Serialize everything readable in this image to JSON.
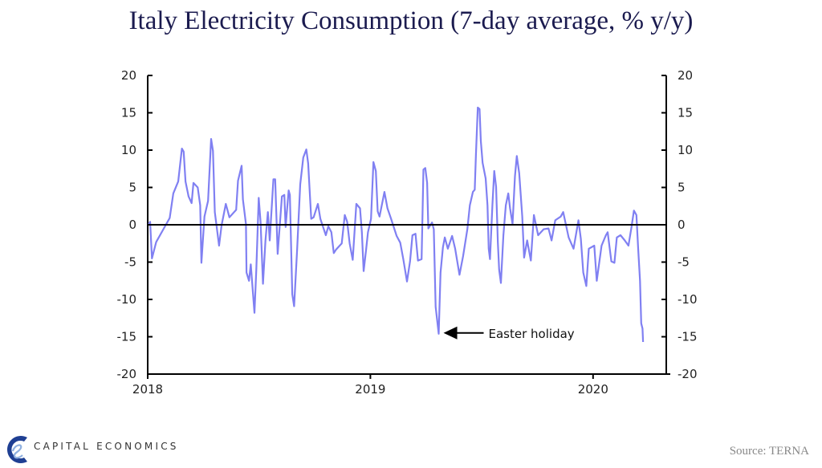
{
  "chart_data": {
    "type": "line",
    "title": "Italy Electricity Consumption (7-day average, % y/y)",
    "ylim": [
      -20,
      20
    ],
    "yticks": [
      20,
      15,
      10,
      5,
      0,
      -5,
      -10,
      -15,
      -20
    ],
    "xlim": [
      "2018-01-01",
      "2020-04-30"
    ],
    "xticks": [
      {
        "date": "2018-01-01",
        "label": "2018"
      },
      {
        "date": "2019-01-01",
        "label": "2019"
      },
      {
        "date": "2020-01-01",
        "label": "2020"
      }
    ],
    "dual_y_axis": true,
    "grid": false,
    "zero_line": true,
    "line_color": "#8080f2",
    "annotation": {
      "text": "Easter holiday",
      "date": "2019-04-23",
      "value": -14.6
    },
    "series": [
      {
        "points": [
          [
            "2018-01-02",
            0
          ],
          [
            "2018-01-05",
            0.4
          ],
          [
            "2018-01-08",
            -4.5
          ],
          [
            "2018-01-15",
            -2.3
          ],
          [
            "2018-01-26",
            -0.7
          ],
          [
            "2018-02-06",
            0.9
          ],
          [
            "2018-02-12",
            4.2
          ],
          [
            "2018-02-20",
            5.8
          ],
          [
            "2018-02-26",
            10.2
          ],
          [
            "2018-03-01",
            9.8
          ],
          [
            "2018-03-04",
            5.8
          ],
          [
            "2018-03-09",
            3.8
          ],
          [
            "2018-03-14",
            2.9
          ],
          [
            "2018-03-17",
            5.6
          ],
          [
            "2018-03-24",
            5.0
          ],
          [
            "2018-03-28",
            2.6
          ],
          [
            "2018-03-30",
            -5.1
          ],
          [
            "2018-04-04",
            1.1
          ],
          [
            "2018-04-10",
            3.2
          ],
          [
            "2018-04-15",
            11.5
          ],
          [
            "2018-04-18",
            9.9
          ],
          [
            "2018-04-21",
            1.7
          ],
          [
            "2018-04-28",
            -2.8
          ],
          [
            "2018-05-02",
            -0.1
          ],
          [
            "2018-05-09",
            2.8
          ],
          [
            "2018-05-15",
            1.0
          ],
          [
            "2018-05-26",
            2.0
          ],
          [
            "2018-05-29",
            5.9
          ],
          [
            "2018-06-04",
            7.9
          ],
          [
            "2018-06-06",
            3.4
          ],
          [
            "2018-06-11",
            0.1
          ],
          [
            "2018-06-12",
            -6.4
          ],
          [
            "2018-06-16",
            -7.5
          ],
          [
            "2018-06-19",
            -5.3
          ],
          [
            "2018-06-25",
            -11.8
          ],
          [
            "2018-06-28",
            -6.0
          ],
          [
            "2018-07-02",
            3.6
          ],
          [
            "2018-07-05",
            0.4
          ],
          [
            "2018-07-09",
            -7.9
          ],
          [
            "2018-07-13",
            -2.1
          ],
          [
            "2018-07-17",
            1.7
          ],
          [
            "2018-07-20",
            -2.1
          ],
          [
            "2018-07-26",
            6.1
          ],
          [
            "2018-07-29",
            6.1
          ],
          [
            "2018-08-02",
            -3.9
          ],
          [
            "2018-08-09",
            3.8
          ],
          [
            "2018-08-13",
            4.0
          ],
          [
            "2018-08-15",
            -0.3
          ],
          [
            "2018-08-20",
            4.6
          ],
          [
            "2018-08-22",
            4.0
          ],
          [
            "2018-08-26",
            -9.3
          ],
          [
            "2018-08-29",
            -10.9
          ],
          [
            "2018-09-03",
            -3.2
          ],
          [
            "2018-09-08",
            5.4
          ],
          [
            "2018-09-13",
            9.0
          ],
          [
            "2018-09-18",
            10.1
          ],
          [
            "2018-09-21",
            8.2
          ],
          [
            "2018-09-26",
            0.8
          ],
          [
            "2018-09-30",
            1.0
          ],
          [
            "2018-10-07",
            2.8
          ],
          [
            "2018-10-11",
            0.8
          ],
          [
            "2018-10-20",
            -1.4
          ],
          [
            "2018-10-24",
            -0.2
          ],
          [
            "2018-10-29",
            -1.0
          ],
          [
            "2018-11-02",
            -3.8
          ],
          [
            "2018-11-06",
            -3.3
          ],
          [
            "2018-11-15",
            -2.5
          ],
          [
            "2018-11-20",
            1.3
          ],
          [
            "2018-11-24",
            0.4
          ],
          [
            "2018-11-28",
            -2.5
          ],
          [
            "2018-12-03",
            -4.7
          ],
          [
            "2018-12-09",
            2.8
          ],
          [
            "2018-12-15",
            2.2
          ],
          [
            "2018-12-18",
            -1.0
          ],
          [
            "2018-12-21",
            -6.2
          ],
          [
            "2018-12-25",
            -3.3
          ],
          [
            "2018-12-28",
            -1.0
          ],
          [
            "2019-01-02",
            0.8
          ],
          [
            "2019-01-06",
            8.4
          ],
          [
            "2019-01-10",
            7.2
          ],
          [
            "2019-01-13",
            1.8
          ],
          [
            "2019-01-16",
            1.1
          ],
          [
            "2019-01-24",
            4.4
          ],
          [
            "2019-01-29",
            2.2
          ],
          [
            "2019-02-04",
            0.8
          ],
          [
            "2019-02-13",
            -1.5
          ],
          [
            "2019-02-19",
            -2.4
          ],
          [
            "2019-02-24",
            -4.6
          ],
          [
            "2019-03-02",
            -7.6
          ],
          [
            "2019-03-07",
            -4.9
          ],
          [
            "2019-03-11",
            -1.4
          ],
          [
            "2019-03-16",
            -1.2
          ],
          [
            "2019-03-20",
            -4.8
          ],
          [
            "2019-03-26",
            -4.6
          ],
          [
            "2019-03-29",
            7.4
          ],
          [
            "2019-04-01",
            7.6
          ],
          [
            "2019-04-04",
            5.6
          ],
          [
            "2019-04-06",
            -0.5
          ],
          [
            "2019-04-12",
            0.3
          ],
          [
            "2019-04-15",
            -0.6
          ],
          [
            "2019-04-18",
            -11.0
          ],
          [
            "2019-04-23",
            -14.6
          ],
          [
            "2019-04-26",
            -6.4
          ],
          [
            "2019-04-30",
            -3.0
          ],
          [
            "2019-05-03",
            -1.7
          ],
          [
            "2019-05-08",
            -3.2
          ],
          [
            "2019-05-15",
            -1.5
          ],
          [
            "2019-05-20",
            -3.2
          ],
          [
            "2019-05-27",
            -6.7
          ],
          [
            "2019-06-02",
            -4.2
          ],
          [
            "2019-06-09",
            -0.6
          ],
          [
            "2019-06-13",
            2.6
          ],
          [
            "2019-06-18",
            4.4
          ],
          [
            "2019-06-21",
            4.7
          ],
          [
            "2019-06-23",
            9.4
          ],
          [
            "2019-06-26",
            15.7
          ],
          [
            "2019-06-29",
            15.5
          ],
          [
            "2019-07-01",
            11.2
          ],
          [
            "2019-07-04",
            8.3
          ],
          [
            "2019-07-09",
            6.2
          ],
          [
            "2019-07-12",
            2.6
          ],
          [
            "2019-07-14",
            -3.2
          ],
          [
            "2019-07-16",
            -4.6
          ],
          [
            "2019-07-20",
            2.6
          ],
          [
            "2019-07-23",
            7.2
          ],
          [
            "2019-07-26",
            5.1
          ],
          [
            "2019-07-29",
            -2.4
          ],
          [
            "2019-07-31",
            -6.0
          ],
          [
            "2019-08-03",
            -7.8
          ],
          [
            "2019-08-07",
            -1.4
          ],
          [
            "2019-08-11",
            2.6
          ],
          [
            "2019-08-15",
            4.2
          ],
          [
            "2019-08-18",
            2.2
          ],
          [
            "2019-08-22",
            0.1
          ],
          [
            "2019-08-26",
            6.5
          ],
          [
            "2019-08-29",
            9.2
          ],
          [
            "2019-09-02",
            6.9
          ],
          [
            "2019-09-07",
            1.1
          ],
          [
            "2019-09-10",
            -4.4
          ],
          [
            "2019-09-15",
            -2.1
          ],
          [
            "2019-09-21",
            -4.8
          ],
          [
            "2019-09-26",
            1.3
          ],
          [
            "2019-10-03",
            -1.4
          ],
          [
            "2019-10-12",
            -0.6
          ],
          [
            "2019-10-20",
            -0.5
          ],
          [
            "2019-10-25",
            -2.1
          ],
          [
            "2019-10-31",
            0.6
          ],
          [
            "2019-11-09",
            1.1
          ],
          [
            "2019-11-13",
            1.7
          ],
          [
            "2019-11-22",
            -1.7
          ],
          [
            "2019-11-30",
            -3.2
          ],
          [
            "2019-12-08",
            0.6
          ],
          [
            "2019-12-12",
            -1.9
          ],
          [
            "2019-12-16",
            -6.4
          ],
          [
            "2019-12-21",
            -8.2
          ],
          [
            "2019-12-25",
            -3.2
          ],
          [
            "2020-01-03",
            -2.8
          ],
          [
            "2020-01-07",
            -7.5
          ],
          [
            "2020-01-15",
            -2.8
          ],
          [
            "2020-01-22",
            -1.4
          ],
          [
            "2020-01-25",
            -1.0
          ],
          [
            "2020-01-31",
            -4.9
          ],
          [
            "2020-02-05",
            -5.1
          ],
          [
            "2020-02-09",
            -1.7
          ],
          [
            "2020-02-15",
            -1.4
          ],
          [
            "2020-02-22",
            -2.1
          ],
          [
            "2020-02-28",
            -2.8
          ],
          [
            "2020-03-04",
            -0.3
          ],
          [
            "2020-03-08",
            1.9
          ],
          [
            "2020-03-12",
            1.3
          ],
          [
            "2020-03-15",
            -3.2
          ],
          [
            "2020-03-18",
            -7.5
          ],
          [
            "2020-03-20",
            -13.2
          ],
          [
            "2020-03-22",
            -13.9
          ],
          [
            "2020-03-23",
            -15.7
          ]
        ]
      }
    ]
  },
  "footer": {
    "brand": "CAPITAL ECONOMICS",
    "source": "Source: TERNA",
    "logo_text": "CE",
    "brand_color": "#1f3f93"
  }
}
